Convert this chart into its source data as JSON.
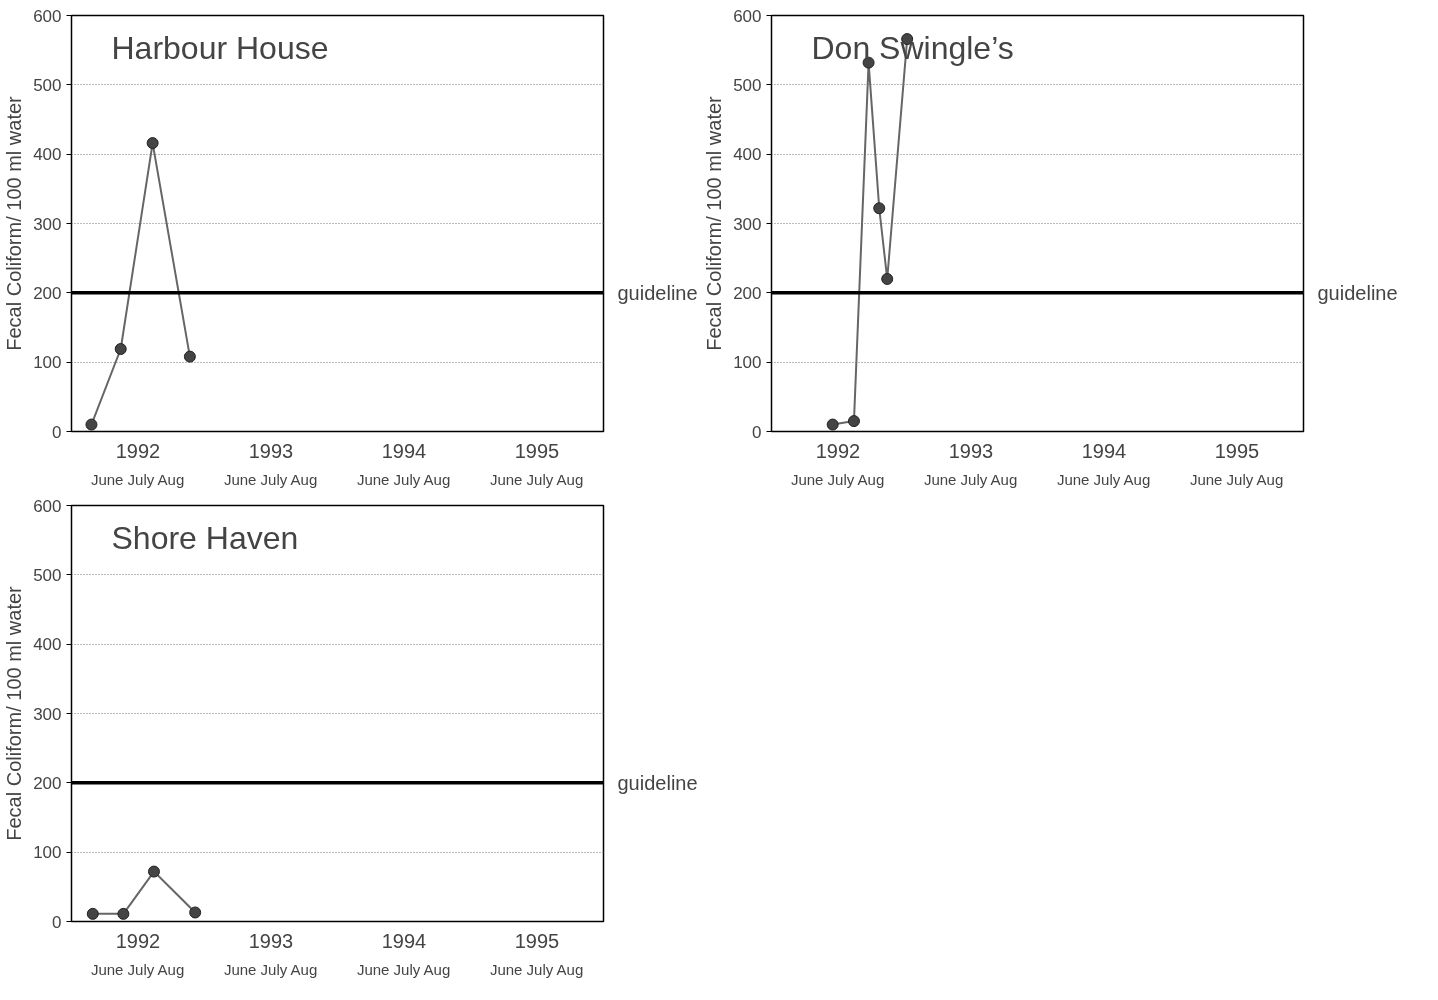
{
  "chart_data": [
    {
      "type": "line",
      "title": "Harbour House",
      "ylabel": "Fecal Coliform/ 100 ml water",
      "marker": "circle",
      "grid": "y",
      "xlim": [
        1991.5,
        1995.5
      ],
      "xticks": [
        1992,
        1993,
        1994,
        1995
      ],
      "ylim": [
        0,
        600
      ],
      "yticks": [
        0,
        100,
        200,
        300,
        400,
        500,
        600
      ],
      "annotations": [
        "June July Aug",
        "June July Aug",
        "June July Aug",
        "June July Aug"
      ],
      "series": [
        {
          "color": "#444444",
          "x": [
            1991.65,
            1991.87,
            1992.11,
            1992.39
          ],
          "values": [
            10,
            119,
            416,
            108
          ]
        }
      ],
      "ref_lines": [
        {
          "axis": "y",
          "value": 200,
          "label": "guideline",
          "color": "#000000"
        }
      ]
    },
    {
      "type": "line",
      "title": "Don Swingle’s",
      "ylabel": "Fecal Coliform/ 100 ml water",
      "marker": "circle",
      "grid": "y",
      "xlim": [
        1991.5,
        1995.5
      ],
      "xticks": [
        1992,
        1993,
        1994,
        1995
      ],
      "ylim": [
        0,
        600
      ],
      "yticks": [
        0,
        100,
        200,
        300,
        400,
        500,
        600
      ],
      "annotations": [
        "June July Aug",
        "June July Aug",
        "June July Aug",
        "June July Aug"
      ],
      "series": [
        {
          "color": "#444444",
          "x": [
            1991.96,
            1992.12,
            1992.23,
            1992.31,
            1992.37,
            1992.52
          ],
          "values": [
            10,
            15,
            532,
            322,
            220,
            566
          ]
        }
      ],
      "ref_lines": [
        {
          "axis": "y",
          "value": 200,
          "label": "guideline",
          "color": "#000000"
        }
      ]
    },
    {
      "type": "line",
      "title": "Shore Haven",
      "ylabel": "Fecal Coliform/ 100 ml water",
      "marker": "circle",
      "grid": "y",
      "xlim": [
        1991.5,
        1995.5
      ],
      "xticks": [
        1992,
        1993,
        1994,
        1995
      ],
      "ylim": [
        0,
        600
      ],
      "yticks": [
        0,
        100,
        200,
        300,
        400,
        500,
        600
      ],
      "annotations": [
        "June July Aug",
        "June July Aug",
        "June July Aug",
        "June July Aug"
      ],
      "series": [
        {
          "color": "#444444",
          "x": [
            1991.66,
            1991.89,
            1992.12,
            1992.43
          ],
          "values": [
            11,
            11,
            72,
            13
          ]
        }
      ],
      "ref_lines": [
        {
          "axis": "y",
          "value": 200,
          "label": "guideline",
          "color": "#000000"
        }
      ]
    }
  ]
}
